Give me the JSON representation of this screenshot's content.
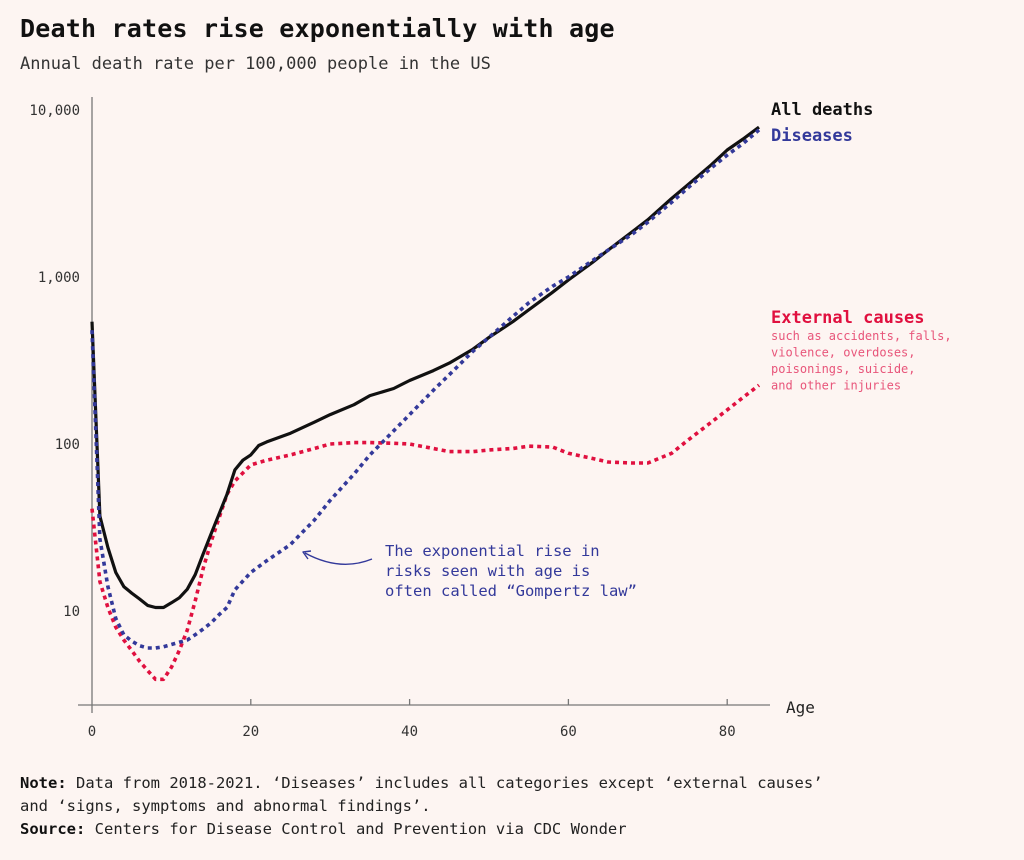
{
  "header": {
    "title": "Death rates rise exponentially with age",
    "subtitle": "Annual death rate per 100,000 people in the US"
  },
  "colors": {
    "all_deaths": "#111111",
    "diseases": "#33399a",
    "external": "#e0103f",
    "external_sub": "#e8557a",
    "axis": "#777777",
    "background": "#fdf5f2"
  },
  "chart_data": {
    "type": "line",
    "title": "Death rates rise exponentially with age",
    "subtitle": "Annual death rate per 100,000 people in the US",
    "xlabel": "Age",
    "ylabel": "",
    "yscale": "log",
    "xlim": [
      0,
      84
    ],
    "ylim": [
      2.77,
      10000
    ],
    "x_ticks": [
      0,
      20,
      40,
      60,
      80
    ],
    "x_tick_labels": [
      "0",
      "20",
      "40",
      "60",
      "80"
    ],
    "y_ticks": [
      10,
      100,
      1000,
      10000
    ],
    "y_tick_labels": [
      "10",
      "100",
      "1,000",
      "10,000"
    ],
    "grid": false,
    "legend": "inline-right",
    "series": [
      {
        "name": "All deaths",
        "style": "solid",
        "x": [
          0,
          1,
          2,
          3,
          4,
          5,
          6,
          7,
          8,
          9,
          10,
          11,
          12,
          13,
          14,
          15,
          16,
          17,
          18,
          19,
          20,
          21,
          22,
          25,
          28,
          30,
          33,
          35,
          38,
          40,
          43,
          45,
          48,
          50,
          53,
          55,
          58,
          60,
          63,
          65,
          68,
          70,
          73,
          75,
          78,
          80,
          82,
          84
        ],
        "y": [
          540,
          37,
          24,
          17,
          14,
          12.8,
          11.8,
          10.8,
          10.5,
          10.5,
          11.2,
          12,
          13.5,
          16.5,
          22,
          29,
          38,
          50,
          70,
          80,
          86,
          98,
          103,
          116,
          135,
          150,
          172,
          195,
          215,
          240,
          275,
          305,
          370,
          435,
          540,
          635,
          810,
          960,
          1220,
          1450,
          1860,
          2200,
          2950,
          3550,
          4700,
          5760,
          6700,
          7900
        ]
      },
      {
        "name": "Diseases",
        "style": "dotted",
        "x": [
          0,
          1,
          2,
          3,
          4,
          5,
          6,
          7,
          8,
          9,
          10,
          11,
          12,
          13,
          14,
          15,
          16,
          17,
          18,
          20,
          22,
          25,
          28,
          30,
          33,
          35,
          38,
          40,
          43,
          45,
          48,
          50,
          53,
          55,
          58,
          60,
          63,
          65,
          68,
          70,
          73,
          75,
          78,
          80,
          82,
          84
        ],
        "y": [
          480,
          27,
          14,
          9,
          7.2,
          6.6,
          6.2,
          6.0,
          6.0,
          6.1,
          6.3,
          6.5,
          6.7,
          7.2,
          7.8,
          8.5,
          9.5,
          10.5,
          13.4,
          17,
          20,
          25,
          35,
          46,
          66,
          86,
          120,
          150,
          210,
          260,
          360,
          435,
          580,
          700,
          880,
          1000,
          1250,
          1450,
          1800,
          2130,
          2800,
          3400,
          4500,
          5370,
          6300,
          7600
        ]
      },
      {
        "name": "External causes",
        "description": "such as accidents, falls, violence, overdoses, poisonings, suicide, and other injuries",
        "style": "dotted",
        "x": [
          0,
          1,
          2,
          3,
          4,
          5,
          6,
          7,
          8,
          9,
          10,
          11,
          12,
          13,
          14,
          15,
          16,
          17,
          18,
          20,
          22,
          25,
          28,
          30,
          33,
          35,
          38,
          40,
          43,
          45,
          48,
          50,
          53,
          55,
          58,
          60,
          63,
          65,
          68,
          70,
          73,
          75,
          78,
          80,
          82,
          84
        ],
        "y": [
          41,
          15,
          10.5,
          8,
          6.7,
          5.8,
          5.0,
          4.4,
          3.9,
          3.9,
          4.6,
          5.8,
          7.7,
          11.5,
          18,
          26,
          36,
          50,
          60,
          75,
          80,
          86,
          94,
          100,
          102,
          102,
          101,
          100,
          94,
          90,
          90,
          92,
          94,
          97,
          96,
          88,
          82,
          78,
          77,
          77,
          88,
          105,
          135,
          160,
          190,
          225
        ]
      }
    ],
    "legend_entries": [
      {
        "label": "All deaths"
      },
      {
        "label": "Diseases"
      },
      {
        "label": "External causes",
        "sub": [
          "such as accidents, falls,",
          "violence, overdoses,",
          "poisonings, suicide,",
          "and other injuries"
        ]
      }
    ],
    "annotations": [
      {
        "text": [
          "The exponential rise in",
          "risks seen with age is",
          "often called “Gompertz law”"
        ],
        "points_to": "Diseases",
        "at_x": 26
      }
    ]
  },
  "footer": {
    "note_label": "Note:",
    "note_text": " Data from 2018-2021. ‘Diseases’ includes all categories except ‘external causes’",
    "note_text_2": "and ‘signs, symptoms and abnormal findings’.",
    "source_label": "Source:",
    "source_text": " Centers for Disease Control and Prevention via CDC Wonder"
  }
}
